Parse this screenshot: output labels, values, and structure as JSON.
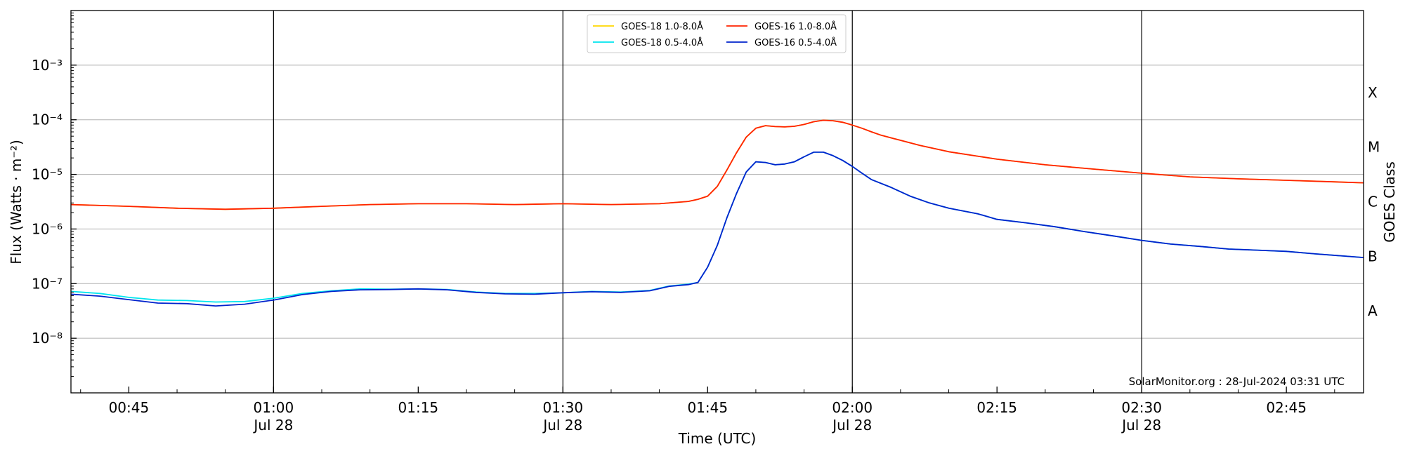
{
  "chart_data": {
    "type": "line",
    "xlabel": "Time (UTC)",
    "ylabel": "Flux (Watts · m⁻²)",
    "ylabel_right": "GOES Class",
    "y_scale": "log",
    "ylim": [
      1e-09,
      0.01
    ],
    "xlim": [
      "00:39",
      "02:53"
    ],
    "y_ticks": [
      {
        "value": 1e-08,
        "label": "10⁻⁸"
      },
      {
        "value": 1e-07,
        "label": "10⁻⁷"
      },
      {
        "value": 1e-06,
        "label": "10⁻⁶"
      },
      {
        "value": 1e-05,
        "label": "10⁻⁵"
      },
      {
        "value": 0.0001,
        "label": "10⁻⁴"
      },
      {
        "value": 0.001,
        "label": "10⁻³"
      }
    ],
    "x_ticks": [
      {
        "time": "00:45",
        "label": "00:45",
        "date": ""
      },
      {
        "time": "01:00",
        "label": "01:00",
        "date": "Jul 28"
      },
      {
        "time": "01:15",
        "label": "01:15",
        "date": ""
      },
      {
        "time": "01:30",
        "label": "01:30",
        "date": "Jul 28"
      },
      {
        "time": "01:45",
        "label": "01:45",
        "date": ""
      },
      {
        "time": "02:00",
        "label": "02:00",
        "date": "Jul 28"
      },
      {
        "time": "02:15",
        "label": "02:15",
        "date": ""
      },
      {
        "time": "02:30",
        "label": "02:30",
        "date": "Jul 28"
      },
      {
        "time": "02:45",
        "label": "02:45",
        "date": ""
      }
    ],
    "vertical_lines": [
      "01:00",
      "01:30",
      "02:00",
      "02:30"
    ],
    "goes_classes": [
      {
        "label": "A",
        "value": 3.16e-08
      },
      {
        "label": "B",
        "value": 3.16e-07
      },
      {
        "label": "C",
        "value": 3.16e-06
      },
      {
        "label": "M",
        "value": 3.16e-05
      },
      {
        "label": "X",
        "value": 0.000316
      }
    ],
    "grid": "horizontal",
    "legend_position": "top-center",
    "series": [
      {
        "name": "GOES-18 1.0-8.0Å",
        "color": "#ffd700",
        "x": [
          "00:39",
          "00:45",
          "00:50",
          "00:55",
          "01:00",
          "01:05",
          "01:10",
          "01:15",
          "01:20",
          "01:25",
          "01:30",
          "01:35",
          "01:40",
          "01:43",
          "01:44",
          "01:45",
          "01:46",
          "01:47",
          "01:48",
          "01:49",
          "01:50",
          "01:51",
          "01:52",
          "01:53",
          "01:54",
          "01:55",
          "01:56",
          "01:57",
          "01:58",
          "01:59",
          "02:00",
          "02:01",
          "02:02",
          "02:03",
          "02:05",
          "02:07",
          "02:10",
          "02:15",
          "02:20",
          "02:25",
          "02:30",
          "02:35",
          "02:40",
          "02:45",
          "02:53"
        ],
        "values": [
          2.8e-06,
          2.6e-06,
          2.4e-06,
          2.3e-06,
          2.4e-06,
          2.6e-06,
          2.8e-06,
          2.9e-06,
          2.9e-06,
          2.8e-06,
          2.9e-06,
          2.8e-06,
          2.9e-06,
          3.2e-06,
          3.5e-06,
          4e-06,
          6e-06,
          1.2e-05,
          2.5e-05,
          4.8e-05,
          7e-05,
          7.8e-05,
          7.5e-05,
          7.4e-05,
          7.6e-05,
          8.2e-05,
          9.2e-05,
          9.8e-05,
          9.6e-05,
          9e-05,
          8e-05,
          7e-05,
          6e-05,
          5.2e-05,
          4.2e-05,
          3.4e-05,
          2.6e-05,
          1.9e-05,
          1.5e-05,
          1.25e-05,
          1.05e-05,
          9e-06,
          8.3e-06,
          7.8e-06,
          7e-06
        ]
      },
      {
        "name": "GOES-18 0.5-4.0Å",
        "color": "#00e5ee",
        "x": [
          "00:39",
          "00:42",
          "00:45",
          "00:48",
          "00:51",
          "00:54",
          "00:57",
          "01:00",
          "01:03",
          "01:06",
          "01:09",
          "01:12",
          "01:15",
          "01:18",
          "01:21",
          "01:24",
          "01:27",
          "01:30",
          "01:33",
          "01:36",
          "01:39",
          "01:41",
          "01:43",
          "01:44",
          "01:45",
          "01:46",
          "01:47",
          "01:48",
          "01:49",
          "01:50",
          "01:51",
          "01:52",
          "01:53",
          "01:54",
          "01:55",
          "01:56",
          "01:57",
          "01:58",
          "01:59",
          "02:00",
          "02:01",
          "02:02",
          "02:04",
          "02:06",
          "02:08",
          "02:10",
          "02:13",
          "02:15",
          "02:18",
          "02:21",
          "02:24",
          "02:27",
          "02:30",
          "02:33",
          "02:36",
          "02:39",
          "02:42",
          "02:45",
          "02:48",
          "02:51",
          "02:53"
        ],
        "values": [
          7.2e-08,
          6.6e-08,
          5.6e-08,
          5e-08,
          4.9e-08,
          4.6e-08,
          4.7e-08,
          5.4e-08,
          6.6e-08,
          7.4e-08,
          8e-08,
          7.9e-08,
          8e-08,
          7.8e-08,
          7e-08,
          6.6e-08,
          6.6e-08,
          6.8e-08,
          7.2e-08,
          7e-08,
          7.5e-08,
          9e-08,
          9.8e-08,
          1.05e-07,
          2e-07,
          5e-07,
          1.6e-06,
          4.5e-06,
          1.1e-05,
          1.7e-05,
          1.65e-05,
          1.5e-05,
          1.55e-05,
          1.7e-05,
          2.1e-05,
          2.55e-05,
          2.55e-05,
          2.2e-05,
          1.8e-05,
          1.4e-05,
          1.05e-05,
          8e-06,
          5.8e-06,
          4e-06,
          3e-06,
          2.4e-06,
          1.9e-06,
          1.5e-06,
          1.3e-06,
          1.1e-06,
          9e-07,
          7.5e-07,
          6.2e-07,
          5.3e-07,
          4.8e-07,
          4.3e-07,
          4.1e-07,
          3.9e-07,
          3.5e-07,
          3.2e-07,
          3e-07
        ]
      },
      {
        "name": "GOES-16 1.0-8.0Å",
        "color": "#ff2200",
        "x": [
          "00:39",
          "00:45",
          "00:50",
          "00:55",
          "01:00",
          "01:05",
          "01:10",
          "01:15",
          "01:20",
          "01:25",
          "01:30",
          "01:35",
          "01:40",
          "01:43",
          "01:44",
          "01:45",
          "01:46",
          "01:47",
          "01:48",
          "01:49",
          "01:50",
          "01:51",
          "01:52",
          "01:53",
          "01:54",
          "01:55",
          "01:56",
          "01:57",
          "01:58",
          "01:59",
          "02:00",
          "02:01",
          "02:02",
          "02:03",
          "02:05",
          "02:07",
          "02:10",
          "02:15",
          "02:20",
          "02:25",
          "02:30",
          "02:35",
          "02:40",
          "02:45",
          "02:53"
        ],
        "values": [
          2.8e-06,
          2.6e-06,
          2.4e-06,
          2.3e-06,
          2.4e-06,
          2.6e-06,
          2.8e-06,
          2.9e-06,
          2.9e-06,
          2.8e-06,
          2.9e-06,
          2.8e-06,
          2.9e-06,
          3.2e-06,
          3.5e-06,
          4e-06,
          6e-06,
          1.2e-05,
          2.5e-05,
          4.8e-05,
          7e-05,
          7.8e-05,
          7.5e-05,
          7.4e-05,
          7.6e-05,
          8.2e-05,
          9.2e-05,
          9.8e-05,
          9.6e-05,
          9e-05,
          8e-05,
          7e-05,
          6e-05,
          5.2e-05,
          4.2e-05,
          3.4e-05,
          2.6e-05,
          1.9e-05,
          1.5e-05,
          1.25e-05,
          1.05e-05,
          9e-06,
          8.3e-06,
          7.8e-06,
          7e-06
        ]
      },
      {
        "name": "GOES-16 0.5-4.0Å",
        "color": "#0022cc",
        "x": [
          "00:39",
          "00:42",
          "00:45",
          "00:48",
          "00:51",
          "00:54",
          "00:57",
          "01:00",
          "01:03",
          "01:06",
          "01:09",
          "01:12",
          "01:15",
          "01:18",
          "01:21",
          "01:24",
          "01:27",
          "01:30",
          "01:33",
          "01:36",
          "01:39",
          "01:41",
          "01:43",
          "01:44",
          "01:45",
          "01:46",
          "01:47",
          "01:48",
          "01:49",
          "01:50",
          "01:51",
          "01:52",
          "01:53",
          "01:54",
          "01:55",
          "01:56",
          "01:57",
          "01:58",
          "01:59",
          "02:00",
          "02:01",
          "02:02",
          "02:04",
          "02:06",
          "02:08",
          "02:10",
          "02:13",
          "02:15",
          "02:18",
          "02:21",
          "02:24",
          "02:27",
          "02:30",
          "02:33",
          "02:36",
          "02:39",
          "02:42",
          "02:45",
          "02:48",
          "02:51",
          "02:53"
        ],
        "values": [
          6.4e-08,
          5.9e-08,
          5.1e-08,
          4.4e-08,
          4.3e-08,
          3.9e-08,
          4.2e-08,
          5e-08,
          6.3e-08,
          7.2e-08,
          7.7e-08,
          7.8e-08,
          8e-08,
          7.7e-08,
          6.9e-08,
          6.5e-08,
          6.4e-08,
          6.8e-08,
          7.1e-08,
          6.9e-08,
          7.4e-08,
          8.9e-08,
          9.6e-08,
          1.05e-07,
          2e-07,
          5e-07,
          1.6e-06,
          4.5e-06,
          1.1e-05,
          1.7e-05,
          1.65e-05,
          1.5e-05,
          1.55e-05,
          1.7e-05,
          2.1e-05,
          2.55e-05,
          2.55e-05,
          2.2e-05,
          1.8e-05,
          1.4e-05,
          1.05e-05,
          8e-06,
          5.8e-06,
          4e-06,
          3e-06,
          2.4e-06,
          1.9e-06,
          1.5e-06,
          1.3e-06,
          1.1e-06,
          9e-07,
          7.5e-07,
          6.2e-07,
          5.3e-07,
          4.8e-07,
          4.3e-07,
          4.1e-07,
          3.9e-07,
          3.5e-07,
          3.2e-07,
          3e-07
        ]
      }
    ],
    "legend_order": [
      0,
      1,
      2,
      3
    ],
    "annotation": "SolarMonitor.org : 28-Jul-2024 03:31 UTC"
  }
}
